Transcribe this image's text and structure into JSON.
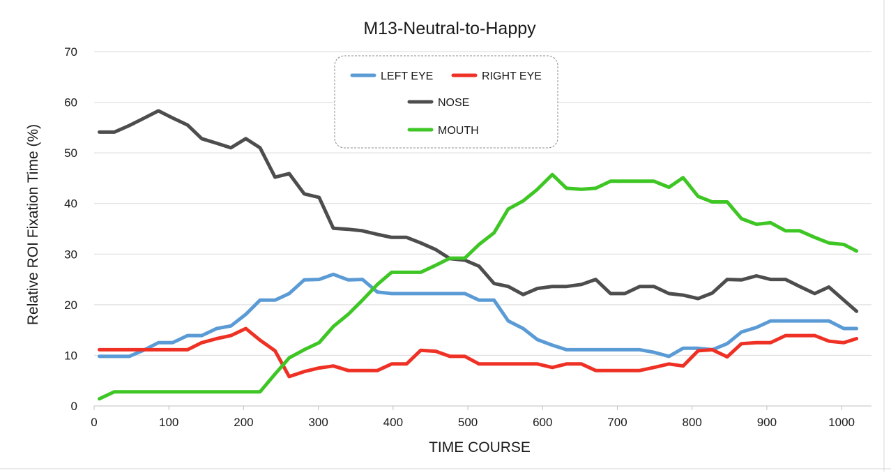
{
  "chart_data": {
    "type": "line",
    "title": "M13-Neutral-to-Happy",
    "xlabel": "TIME  COURSE",
    "ylabel": "Relative  ROI  Fixation  Time  (%)",
    "xlim": [
      0,
      1040
    ],
    "ylim": [
      0,
      70
    ],
    "xticks": [
      0,
      100,
      200,
      300,
      400,
      500,
      600,
      700,
      800,
      900,
      1000
    ],
    "yticks": [
      0,
      10,
      20,
      30,
      40,
      50,
      60,
      70
    ],
    "grid": "horizontal",
    "legend_placement": "top-center",
    "x": [
      7,
      27,
      47,
      66,
      86,
      105,
      125,
      144,
      164,
      183,
      203,
      222,
      242,
      261,
      281,
      301,
      320,
      340,
      359,
      379,
      398,
      418,
      437,
      457,
      476,
      496,
      515,
      535,
      554,
      574,
      593,
      613,
      632,
      652,
      671,
      691,
      710,
      730,
      749,
      769,
      788,
      808,
      827,
      847,
      866,
      886,
      905,
      925,
      944,
      964,
      983,
      1003,
      1020
    ],
    "series": [
      {
        "name": "LEFT EYE",
        "color": "#5b9bd5",
        "values": [
          9.8,
          9.8,
          9.8,
          11.0,
          12.5,
          12.5,
          13.9,
          13.9,
          15.3,
          15.8,
          18.1,
          20.9,
          20.9,
          22.2,
          24.9,
          25.0,
          26.0,
          24.9,
          25.0,
          22.5,
          22.2,
          22.2,
          22.2,
          22.2,
          22.2,
          22.2,
          20.9,
          20.9,
          16.8,
          15.3,
          13.1,
          12.0,
          11.1,
          11.1,
          11.1,
          11.1,
          11.1,
          11.1,
          10.6,
          9.8,
          11.4,
          11.4,
          11.1,
          12.3,
          14.6,
          15.5,
          16.8,
          16.8,
          16.8,
          16.8,
          16.8,
          15.3,
          15.3
        ]
      },
      {
        "name": "RIGHT EYE",
        "color": "#ee3124",
        "values": [
          11.1,
          11.1,
          11.1,
          11.1,
          11.1,
          11.1,
          11.1,
          12.5,
          13.3,
          13.9,
          15.3,
          13.0,
          10.9,
          5.8,
          6.8,
          7.5,
          7.9,
          7.0,
          7.0,
          7.0,
          8.3,
          8.3,
          11.0,
          10.8,
          9.8,
          9.8,
          8.3,
          8.3,
          8.3,
          8.3,
          8.3,
          7.6,
          8.3,
          8.3,
          7.0,
          7.0,
          7.0,
          7.0,
          7.6,
          8.3,
          7.9,
          10.9,
          11.1,
          9.7,
          12.3,
          12.5,
          12.5,
          13.9,
          13.9,
          13.9,
          12.8,
          12.5,
          13.3
        ]
      },
      {
        "name": "NOSE",
        "color": "#4d4d4d",
        "values": [
          54.1,
          54.1,
          55.4,
          56.8,
          58.3,
          56.9,
          55.5,
          52.8,
          51.9,
          51.0,
          52.8,
          51.0,
          45.2,
          45.9,
          41.9,
          41.2,
          35.1,
          34.9,
          34.6,
          33.9,
          33.3,
          33.3,
          32.2,
          30.9,
          29.1,
          28.8,
          27.6,
          24.2,
          23.6,
          22.0,
          23.2,
          23.6,
          23.6,
          24.0,
          25.0,
          22.2,
          22.2,
          23.6,
          23.6,
          22.2,
          21.9,
          21.2,
          22.3,
          25.0,
          24.9,
          25.7,
          25.0,
          25.0,
          23.6,
          22.2,
          23.5,
          20.9,
          18.7
        ]
      },
      {
        "name": "MOUTH",
        "color": "#3ec624",
        "values": [
          1.4,
          2.8,
          2.8,
          2.8,
          2.8,
          2.8,
          2.8,
          2.8,
          2.8,
          2.8,
          2.8,
          2.8,
          6.3,
          9.5,
          11.1,
          12.5,
          15.7,
          18.1,
          20.9,
          24.0,
          26.4,
          26.4,
          26.4,
          27.8,
          29.2,
          29.2,
          31.9,
          34.2,
          38.9,
          40.5,
          42.8,
          45.7,
          43.0,
          42.8,
          43.0,
          44.4,
          44.4,
          44.4,
          44.4,
          43.2,
          45.1,
          41.4,
          40.3,
          40.3,
          37.0,
          35.9,
          36.2,
          34.6,
          34.6,
          33.3,
          32.2,
          31.9,
          30.6
        ]
      }
    ]
  }
}
